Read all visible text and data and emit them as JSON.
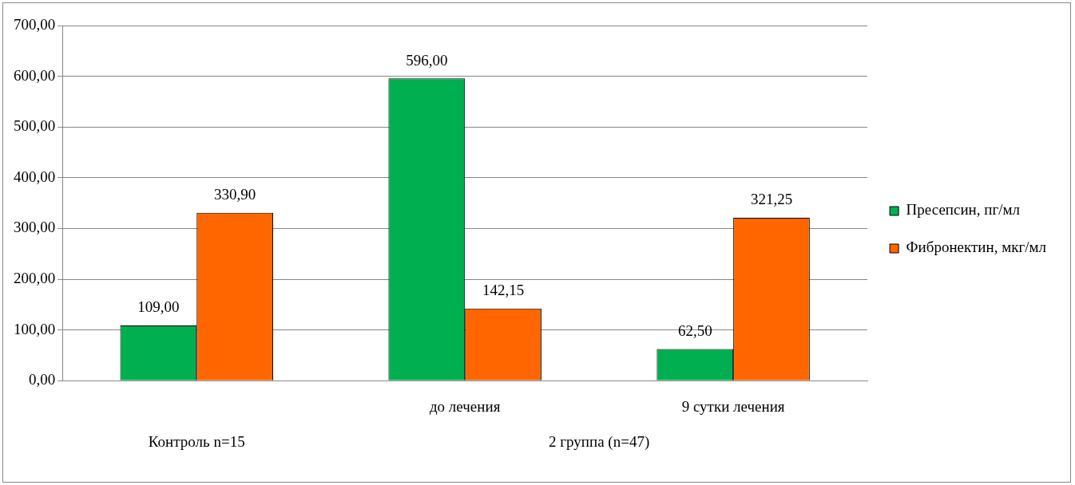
{
  "chart_data": {
    "type": "bar",
    "categories": [
      null,
      "до лечения",
      "9 сутки лечения"
    ],
    "series": [
      {
        "name": "Пресепсин, пг/мл",
        "color": "#00b050",
        "values": [
          109,
          596,
          62.5
        ],
        "value_labels": [
          "109,00",
          "596,00",
          "62,50"
        ]
      },
      {
        "name": "Фибронектин, мкг/мл",
        "color": "#ff6600",
        "values": [
          330.9,
          142.15,
          321.25
        ],
        "value_labels": [
          "330,90",
          "142,15",
          "321,25"
        ]
      }
    ],
    "ylim": [
      0,
      700
    ],
    "yticks": [
      {
        "value": 0,
        "label": "0,00"
      },
      {
        "value": 100,
        "label": "100,00"
      },
      {
        "value": 200,
        "label": "200,00"
      },
      {
        "value": 300,
        "label": "300,00"
      },
      {
        "value": 400,
        "label": "400,00"
      },
      {
        "value": 500,
        "label": "500,00"
      },
      {
        "value": 600,
        "label": "600,00"
      },
      {
        "value": 700,
        "label": "700,00"
      }
    ],
    "grid": "y",
    "legend": "right",
    "annotations": [
      "Контроль n=15",
      "2 группа (n=47)"
    ]
  }
}
